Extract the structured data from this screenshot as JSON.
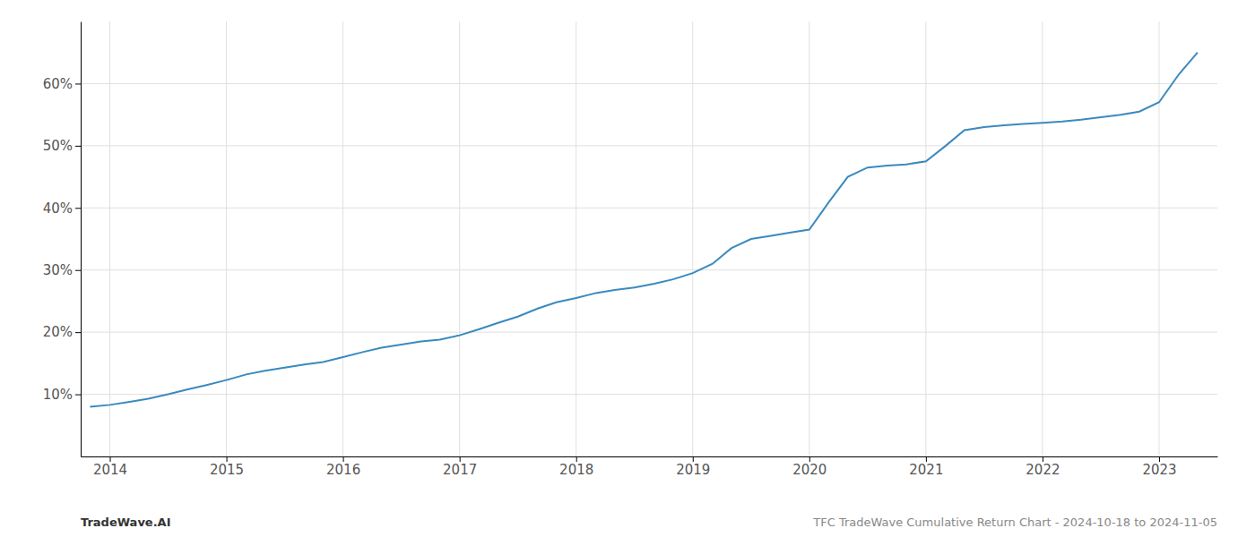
{
  "chart_data": {
    "type": "line",
    "x": [
      2013.83,
      2014.0,
      2014.17,
      2014.33,
      2014.5,
      2014.67,
      2014.83,
      2015.0,
      2015.17,
      2015.33,
      2015.5,
      2015.67,
      2015.83,
      2016.0,
      2016.17,
      2016.33,
      2016.5,
      2016.67,
      2016.83,
      2017.0,
      2017.17,
      2017.33,
      2017.5,
      2017.67,
      2017.83,
      2018.0,
      2018.17,
      2018.33,
      2018.5,
      2018.67,
      2018.83,
      2019.0,
      2019.17,
      2019.33,
      2019.5,
      2019.67,
      2019.83,
      2020.0,
      2020.17,
      2020.33,
      2020.5,
      2020.67,
      2020.83,
      2021.0,
      2021.17,
      2021.33,
      2021.5,
      2021.67,
      2021.83,
      2022.0,
      2022.17,
      2022.33,
      2022.5,
      2022.67,
      2022.83,
      2023.0,
      2023.17,
      2023.33
    ],
    "values": [
      8.0,
      8.3,
      8.8,
      9.3,
      10.0,
      10.8,
      11.5,
      12.3,
      13.2,
      13.8,
      14.3,
      14.8,
      15.2,
      16.0,
      16.8,
      17.5,
      18.0,
      18.5,
      18.8,
      19.5,
      20.5,
      21.5,
      22.5,
      23.8,
      24.8,
      25.5,
      26.3,
      26.8,
      27.2,
      27.8,
      28.5,
      29.5,
      31.0,
      33.5,
      35.0,
      35.5,
      36.0,
      36.5,
      41.0,
      45.0,
      46.5,
      46.8,
      47.0,
      47.5,
      50.0,
      52.5,
      53.0,
      53.3,
      53.5,
      53.7,
      53.9,
      54.2,
      54.6,
      55.0,
      55.5,
      57.0,
      61.5,
      65.0
    ],
    "color": "#3a8abf",
    "xlim": [
      2013.75,
      2023.5
    ],
    "xticks": [
      2014,
      2015,
      2016,
      2017,
      2018,
      2019,
      2020,
      2021,
      2022,
      2023
    ],
    "ylim": [
      0,
      70
    ],
    "yticks": [
      {
        "value": 10,
        "label": "10%"
      },
      {
        "value": 20,
        "label": "20%"
      },
      {
        "value": 30,
        "label": "30%"
      },
      {
        "value": 40,
        "label": "40%"
      },
      {
        "value": 50,
        "label": "50%"
      },
      {
        "value": 60,
        "label": "60%"
      }
    ],
    "grid": true,
    "annotations": [
      "TradeWave.AI",
      "TFC TradeWave Cumulative Return Chart - 2024-10-18 to 2024-11-05"
    ]
  }
}
